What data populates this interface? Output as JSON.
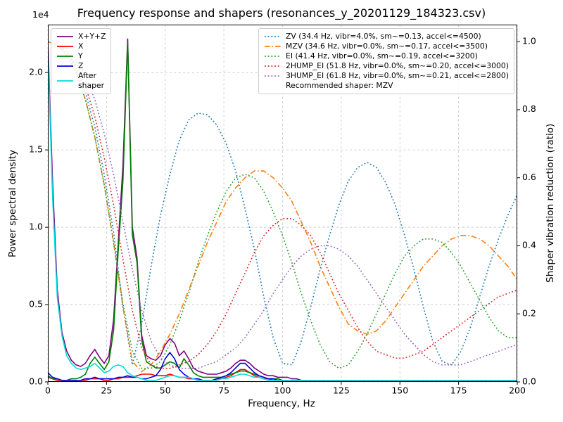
{
  "chart_data": {
    "type": "line",
    "title": "Frequency response and shapers (resonances_y_20201129_184323.csv)",
    "xlabel": "Frequency, Hz",
    "ylabel_left": "Power spectral density",
    "ylabel_right": "Shaper vibration reduction (ratio)",
    "y_left_scale_label": "1e4",
    "y_left_units": "1e4",
    "x_range": [
      0,
      200
    ],
    "x_ticks": [
      0,
      25,
      50,
      75,
      100,
      125,
      150,
      175,
      200
    ],
    "y_left_ticks": [
      0.0,
      0.5,
      1.0,
      1.5,
      2.0
    ],
    "y_left_lim": [
      0,
      2.31
    ],
    "y_right_ticks": [
      0.0,
      0.2,
      0.4,
      0.6,
      0.8,
      1.0
    ],
    "y_right_lim": [
      0,
      1.05
    ],
    "grid": true,
    "recommended_note": "Recommended shaper: MZV",
    "series": [
      {
        "name": "X+Y+Z",
        "group": "psd",
        "axis": "left",
        "color": "#800080",
        "style": "solid",
        "x_start": 0,
        "x_step": 2,
        "values": [
          2.2,
          1.3,
          0.6,
          0.32,
          0.2,
          0.14,
          0.11,
          0.1,
          0.12,
          0.17,
          0.21,
          0.16,
          0.12,
          0.17,
          0.4,
          0.9,
          1.4,
          2.22,
          1.0,
          0.8,
          0.3,
          0.17,
          0.15,
          0.14,
          0.17,
          0.24,
          0.28,
          0.25,
          0.17,
          0.2,
          0.15,
          0.09,
          0.07,
          0.06,
          0.05,
          0.05,
          0.05,
          0.06,
          0.07,
          0.09,
          0.12,
          0.14,
          0.14,
          0.12,
          0.09,
          0.07,
          0.05,
          0.04,
          0.04,
          0.03,
          0.03,
          0.03,
          0.02,
          0.02,
          0.01,
          0.01,
          0.01,
          0.01,
          0.01,
          0.01,
          0.01,
          0.01,
          0.01,
          0.01,
          0.01,
          0.01,
          0.01,
          0.01,
          0.01,
          0.01,
          0.01,
          0.01,
          0.01,
          0.01,
          0.01,
          0.01,
          0.01,
          0.01,
          0.01,
          0.01,
          0.01,
          0.01,
          0.01,
          0.01,
          0.01,
          0.01,
          0.01,
          0.01,
          0.01,
          0.01,
          0.01,
          0.01,
          0.01,
          0.01,
          0.01,
          0.01,
          0.01,
          0.01,
          0.01,
          0.01,
          0.01
        ]
      },
      {
        "name": "X",
        "group": "psd",
        "axis": "left",
        "color": "#ff0000",
        "style": "solid",
        "x_start": 0,
        "x_step": 2,
        "values": [
          0.03,
          0.02,
          0.01,
          0.01,
          0.01,
          0.01,
          0.01,
          0.01,
          0.01,
          0.02,
          0.02,
          0.02,
          0.01,
          0.01,
          0.02,
          0.02,
          0.03,
          0.03,
          0.03,
          0.04,
          0.05,
          0.05,
          0.05,
          0.04,
          0.04,
          0.04,
          0.05,
          0.04,
          0.03,
          0.03,
          0.02,
          0.02,
          0.01,
          0.01,
          0.01,
          0.01,
          0.02,
          0.02,
          0.03,
          0.04,
          0.06,
          0.08,
          0.08,
          0.06,
          0.04,
          0.03,
          0.02,
          0.02,
          0.01,
          0.01,
          0.01,
          0.01,
          0.01,
          0.01,
          0.01,
          0.01,
          0.01,
          0.01,
          0.01,
          0.01,
          0.01,
          0.01,
          0.01,
          0.01,
          0.01,
          0.01,
          0.01,
          0.01,
          0.01,
          0.01,
          0.01,
          0.01,
          0.01,
          0.01,
          0.01,
          0.01,
          0.01,
          0.01,
          0.01,
          0.01,
          0.01,
          0.01,
          0.01,
          0.01,
          0.01,
          0.01,
          0.01,
          0.01,
          0.01,
          0.01,
          0.01,
          0.01,
          0.01,
          0.01,
          0.01,
          0.01,
          0.01,
          0.01,
          0.01,
          0.01,
          0.01
        ]
      },
      {
        "name": "Y",
        "group": "psd",
        "axis": "left",
        "color": "#008000",
        "style": "solid",
        "x_start": 0,
        "x_step": 2,
        "values": [
          0.04,
          0.02,
          0.02,
          0.01,
          0.01,
          0.02,
          0.02,
          0.03,
          0.05,
          0.12,
          0.16,
          0.12,
          0.08,
          0.13,
          0.33,
          0.85,
          1.3,
          2.2,
          0.95,
          0.77,
          0.27,
          0.13,
          0.11,
          0.09,
          0.09,
          0.11,
          0.13,
          0.12,
          0.09,
          0.15,
          0.11,
          0.06,
          0.04,
          0.03,
          0.03,
          0.03,
          0.03,
          0.03,
          0.04,
          0.05,
          0.06,
          0.07,
          0.07,
          0.06,
          0.05,
          0.04,
          0.03,
          0.02,
          0.02,
          0.02,
          0.01,
          0.01,
          0.01,
          0.01,
          0.01,
          0.01,
          0.01,
          0.01,
          0.01,
          0.01,
          0.01,
          0.01,
          0.01,
          0.01,
          0.01,
          0.01,
          0.01,
          0.01,
          0.01,
          0.01,
          0.01,
          0.01,
          0.01,
          0.01,
          0.01,
          0.01,
          0.01,
          0.01,
          0.01,
          0.01,
          0.01,
          0.01,
          0.01,
          0.01,
          0.01,
          0.01,
          0.01,
          0.01,
          0.01,
          0.01,
          0.01,
          0.01,
          0.01,
          0.01,
          0.01,
          0.01,
          0.01,
          0.01,
          0.01,
          0.01,
          0.01
        ]
      },
      {
        "name": "Z",
        "group": "psd",
        "axis": "left",
        "color": "#0000e0",
        "style": "solid",
        "x_start": 0,
        "x_step": 2,
        "values": [
          0.06,
          0.03,
          0.02,
          0.01,
          0.01,
          0.01,
          0.01,
          0.01,
          0.02,
          0.02,
          0.03,
          0.02,
          0.02,
          0.02,
          0.02,
          0.03,
          0.03,
          0.04,
          0.03,
          0.03,
          0.02,
          0.02,
          0.03,
          0.04,
          0.08,
          0.15,
          0.19,
          0.15,
          0.08,
          0.05,
          0.03,
          0.02,
          0.02,
          0.01,
          0.01,
          0.01,
          0.02,
          0.03,
          0.04,
          0.06,
          0.09,
          0.12,
          0.12,
          0.09,
          0.06,
          0.04,
          0.03,
          0.02,
          0.02,
          0.01,
          0.01,
          0.01,
          0.01,
          0.01,
          0.01,
          0.01,
          0.01,
          0.01,
          0.01,
          0.01,
          0.01,
          0.01,
          0.01,
          0.01,
          0.01,
          0.01,
          0.01,
          0.01,
          0.01,
          0.01,
          0.01,
          0.01,
          0.01,
          0.01,
          0.01,
          0.01,
          0.01,
          0.01,
          0.01,
          0.01,
          0.01,
          0.01,
          0.01,
          0.01,
          0.01,
          0.01,
          0.01,
          0.01,
          0.01,
          0.01,
          0.01,
          0.01,
          0.01,
          0.01,
          0.01,
          0.01,
          0.01,
          0.01,
          0.01,
          0.01,
          0.01
        ]
      },
      {
        "name": "After\nshaper",
        "group": "psd",
        "axis": "left",
        "color": "#00dddd",
        "style": "solid",
        "x_start": 0,
        "x_step": 2,
        "values": [
          2.15,
          1.2,
          0.55,
          0.3,
          0.17,
          0.12,
          0.09,
          0.08,
          0.09,
          0.1,
          0.12,
          0.09,
          0.06,
          0.07,
          0.1,
          0.11,
          0.1,
          0.06,
          0.04,
          0.03,
          0.02,
          0.01,
          0.01,
          0.01,
          0.02,
          0.03,
          0.04,
          0.04,
          0.03,
          0.03,
          0.03,
          0.02,
          0.01,
          0.01,
          0.01,
          0.01,
          0.01,
          0.02,
          0.02,
          0.03,
          0.04,
          0.05,
          0.05,
          0.04,
          0.03,
          0.03,
          0.02,
          0.01,
          0.01,
          0.01,
          0.01,
          0.01,
          0.01,
          0.01,
          0.01,
          0.01,
          0.01,
          0.01,
          0.01,
          0.01,
          0.01,
          0.01,
          0.01,
          0.01,
          0.01,
          0.01,
          0.01,
          0.01,
          0.01,
          0.01,
          0.01,
          0.01,
          0.01,
          0.01,
          0.01,
          0.01,
          0.01,
          0.01,
          0.01,
          0.01,
          0.01,
          0.01,
          0.01,
          0.01,
          0.01,
          0.01,
          0.01,
          0.01,
          0.01,
          0.01,
          0.01,
          0.01,
          0.01,
          0.01,
          0.01,
          0.01,
          0.01,
          0.01,
          0.01,
          0.01,
          0.01
        ]
      },
      {
        "name": "ZV (34.4 Hz, vibr=4.0%, sm~=0.13, accel<=4500)",
        "group": "shaper",
        "axis": "right",
        "color": "#1f77b4",
        "style": "dotted",
        "x_start": 0,
        "x_step": 4,
        "values": [
          1.0,
          0.99,
          0.97,
          0.92,
          0.85,
          0.75,
          0.61,
          0.44,
          0.22,
          0.05,
          0.17,
          0.34,
          0.49,
          0.61,
          0.71,
          0.77,
          0.79,
          0.785,
          0.755,
          0.7,
          0.62,
          0.51,
          0.39,
          0.25,
          0.13,
          0.055,
          0.05,
          0.12,
          0.22,
          0.33,
          0.43,
          0.52,
          0.59,
          0.63,
          0.645,
          0.63,
          0.585,
          0.52,
          0.43,
          0.33,
          0.22,
          0.12,
          0.06,
          0.05,
          0.09,
          0.16,
          0.25,
          0.34,
          0.42,
          0.49,
          0.55
        ]
      },
      {
        "name": "MZV (34.6 Hz, vibr=0.0%, sm~=0.17, accel<=3500)",
        "group": "shaper",
        "axis": "right",
        "color": "#ff7f0e",
        "style": "dashdot",
        "x_start": 0,
        "x_step": 4,
        "values": [
          1.0,
          0.99,
          0.96,
          0.91,
          0.83,
          0.72,
          0.58,
          0.41,
          0.22,
          0.06,
          0.03,
          0.05,
          0.09,
          0.14,
          0.2,
          0.27,
          0.34,
          0.41,
          0.47,
          0.53,
          0.57,
          0.6,
          0.62,
          0.62,
          0.6,
          0.57,
          0.53,
          0.47,
          0.41,
          0.34,
          0.28,
          0.22,
          0.17,
          0.15,
          0.14,
          0.15,
          0.18,
          0.22,
          0.26,
          0.3,
          0.34,
          0.37,
          0.4,
          0.42,
          0.43,
          0.43,
          0.42,
          0.4,
          0.37,
          0.34,
          0.3
        ]
      },
      {
        "name": "EI (41.4 Hz, vibr=0.0%, sm~=0.19, accel<=3200)",
        "group": "shaper",
        "axis": "right",
        "color": "#2ca02c",
        "style": "dotted",
        "x_start": 0,
        "x_step": 4,
        "values": [
          1.0,
          0.99,
          0.96,
          0.91,
          0.83,
          0.72,
          0.58,
          0.41,
          0.23,
          0.09,
          0.04,
          0.04,
          0.06,
          0.11,
          0.18,
          0.26,
          0.35,
          0.43,
          0.5,
          0.56,
          0.6,
          0.61,
          0.6,
          0.56,
          0.5,
          0.43,
          0.35,
          0.26,
          0.18,
          0.11,
          0.06,
          0.04,
          0.05,
          0.09,
          0.14,
          0.2,
          0.26,
          0.32,
          0.37,
          0.4,
          0.42,
          0.42,
          0.41,
          0.38,
          0.34,
          0.29,
          0.24,
          0.19,
          0.15,
          0.13,
          0.13
        ]
      },
      {
        "name": "2HUMP_EI (51.8 Hz, vibr=0.0%, sm~=0.20, accel<=3000)",
        "group": "shaper",
        "axis": "right",
        "color": "#d62728",
        "style": "dotted",
        "x_start": 0,
        "x_step": 4,
        "values": [
          1.0,
          0.99,
          0.97,
          0.93,
          0.87,
          0.78,
          0.66,
          0.52,
          0.36,
          0.21,
          0.1,
          0.05,
          0.04,
          0.04,
          0.05,
          0.06,
          0.08,
          0.11,
          0.15,
          0.2,
          0.26,
          0.32,
          0.38,
          0.43,
          0.46,
          0.48,
          0.48,
          0.46,
          0.43,
          0.38,
          0.32,
          0.26,
          0.21,
          0.16,
          0.12,
          0.09,
          0.08,
          0.07,
          0.07,
          0.08,
          0.09,
          0.11,
          0.13,
          0.15,
          0.17,
          0.19,
          0.21,
          0.23,
          0.25,
          0.26,
          0.27
        ]
      },
      {
        "name": "3HUMP_EI (61.8 Hz, vibr=0.0%, sm~=0.21, accel<=2800)",
        "group": "shaper",
        "axis": "right",
        "color": "#9467bd",
        "style": "dotted",
        "x_start": 0,
        "x_step": 4,
        "values": [
          1.0,
          0.99,
          0.98,
          0.94,
          0.9,
          0.83,
          0.73,
          0.61,
          0.47,
          0.33,
          0.21,
          0.12,
          0.07,
          0.05,
          0.04,
          0.04,
          0.04,
          0.05,
          0.06,
          0.08,
          0.1,
          0.13,
          0.17,
          0.21,
          0.26,
          0.3,
          0.34,
          0.37,
          0.39,
          0.4,
          0.4,
          0.39,
          0.37,
          0.34,
          0.3,
          0.26,
          0.22,
          0.18,
          0.14,
          0.11,
          0.08,
          0.06,
          0.05,
          0.05,
          0.05,
          0.06,
          0.07,
          0.08,
          0.09,
          0.1,
          0.11
        ]
      }
    ]
  }
}
